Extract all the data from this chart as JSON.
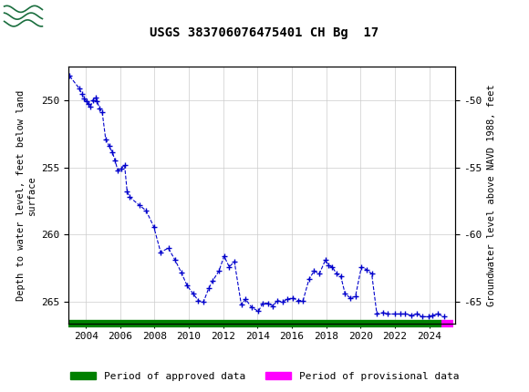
{
  "title": "USGS 383706076475401 CH Bg  17",
  "ylabel_left": "Depth to water level, feet below land\nsurface",
  "ylabel_right": "Groundwater level above NAVD 1988, feet",
  "header_bg": "#1a6e3e",
  "plot_bg": "#ffffff",
  "fig_bg": "#ffffff",
  "grid_color": "#cccccc",
  "line_color": "#0000cc",
  "approved_color": "#008000",
  "provisional_color": "#ff00ff",
  "ylim_left": [
    266.6,
    247.5
  ],
  "ylim_right": [
    -66.6,
    -47.5
  ],
  "xlim": [
    2003.0,
    2025.5
  ],
  "xticks": [
    2004,
    2006,
    2008,
    2010,
    2012,
    2014,
    2016,
    2018,
    2020,
    2022,
    2024
  ],
  "yticks_left": [
    250,
    255,
    260,
    265
  ],
  "yticks_right": [
    -50,
    -55,
    -60,
    -65
  ],
  "approved_xstart": 2003.0,
  "approved_xend": 2024.72,
  "provisional_xstart": 2024.72,
  "provisional_xend": 2025.4,
  "data_years": [
    2003.05,
    2003.6,
    2003.75,
    2003.9,
    2004.05,
    2004.15,
    2004.25,
    2004.4,
    2004.55,
    2004.65,
    2004.8,
    2004.95,
    2005.15,
    2005.35,
    2005.55,
    2005.7,
    2005.85,
    2006.05,
    2006.25,
    2006.4,
    2006.55,
    2007.1,
    2007.5,
    2007.95,
    2008.35,
    2008.8,
    2009.2,
    2009.55,
    2009.9,
    2010.25,
    2010.55,
    2010.85,
    2011.15,
    2011.4,
    2011.75,
    2012.05,
    2012.35,
    2012.65,
    2013.05,
    2013.3,
    2013.65,
    2014.05,
    2014.3,
    2014.6,
    2014.9,
    2015.15,
    2015.45,
    2015.75,
    2016.05,
    2016.35,
    2016.65,
    2017.0,
    2017.3,
    2017.6,
    2017.95,
    2018.15,
    2018.35,
    2018.6,
    2018.85,
    2019.1,
    2019.4,
    2019.7,
    2020.05,
    2020.35,
    2020.65,
    2020.95,
    2021.3,
    2021.6,
    2022.0,
    2022.3,
    2022.6,
    2022.95,
    2023.3,
    2023.6,
    2023.95,
    2024.2,
    2024.5,
    2024.85
  ],
  "data_values": [
    248.2,
    249.1,
    249.5,
    249.9,
    250.1,
    250.3,
    250.5,
    250.0,
    249.8,
    250.1,
    250.6,
    250.9,
    252.9,
    253.4,
    253.9,
    254.5,
    255.2,
    255.1,
    254.8,
    256.8,
    257.2,
    257.8,
    258.2,
    259.4,
    261.3,
    261.0,
    261.9,
    262.8,
    263.8,
    264.4,
    264.9,
    265.0,
    264.0,
    263.4,
    262.7,
    261.6,
    262.4,
    262.0,
    265.2,
    264.8,
    265.4,
    265.7,
    265.1,
    265.1,
    265.3,
    264.9,
    265.0,
    264.8,
    264.7,
    264.9,
    264.9,
    263.3,
    262.7,
    262.9,
    261.9,
    262.3,
    262.4,
    262.9,
    263.1,
    264.4,
    264.7,
    264.6,
    262.4,
    262.6,
    262.9,
    265.9,
    265.8,
    265.9,
    265.9,
    265.9,
    265.9,
    266.0,
    265.9,
    266.1,
    266.1,
    266.0,
    265.9,
    266.1
  ]
}
